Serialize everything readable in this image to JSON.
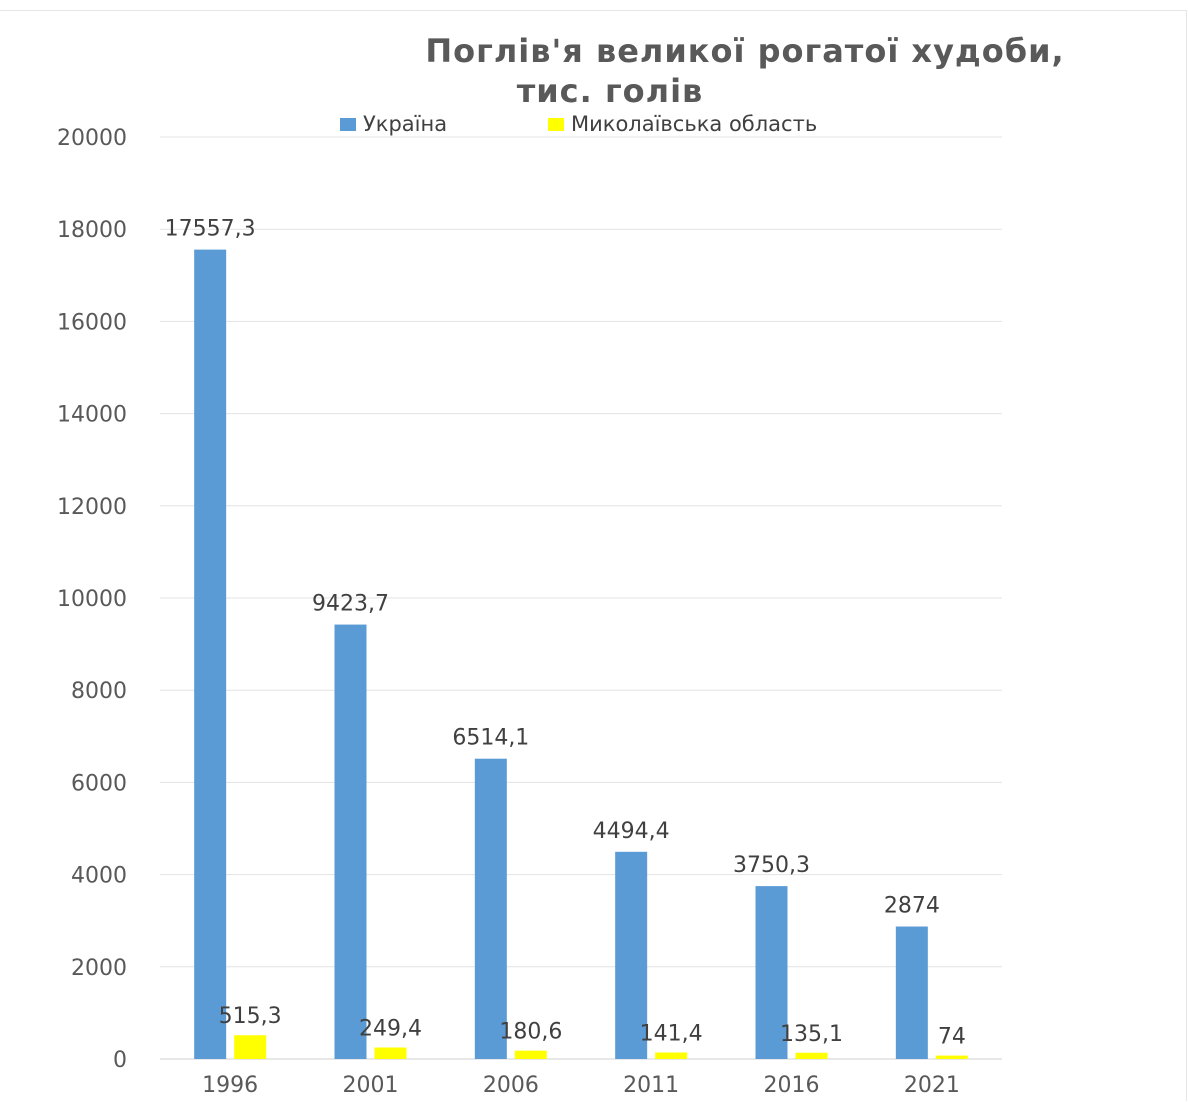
{
  "chart_data": {
    "type": "bar",
    "title": "Поглів'я великої рогатої худоби, тис. голів",
    "title_lines": [
      "Поглів'я великої рогатої худоби,",
      "тис. голів"
    ],
    "categories": [
      "1996",
      "2001",
      "2006",
      "2011",
      "2016",
      "2021"
    ],
    "series": [
      {
        "name": "Україна",
        "color": "#5b9bd5",
        "values": [
          17557.3,
          9423.7,
          6514.1,
          4494.4,
          3750.3,
          2874
        ],
        "labels": [
          "17557,3",
          "9423,7",
          "6514,1",
          "4494,4",
          "3750,3",
          "2874"
        ]
      },
      {
        "name": "Миколаївська область",
        "color": "#ffff00",
        "values": [
          515.3,
          249.4,
          180.6,
          141.4,
          135.1,
          74
        ],
        "labels": [
          "515,3",
          "249,4",
          "180,6",
          "141,4",
          "135,1",
          "74"
        ]
      }
    ],
    "ylim": [
      0,
      20000
    ],
    "yticks": [
      "0",
      "2000",
      "4000",
      "6000",
      "8000",
      "10000",
      "12000",
      "14000",
      "16000",
      "18000",
      "20000"
    ],
    "grid": true,
    "legend_position": "top"
  }
}
